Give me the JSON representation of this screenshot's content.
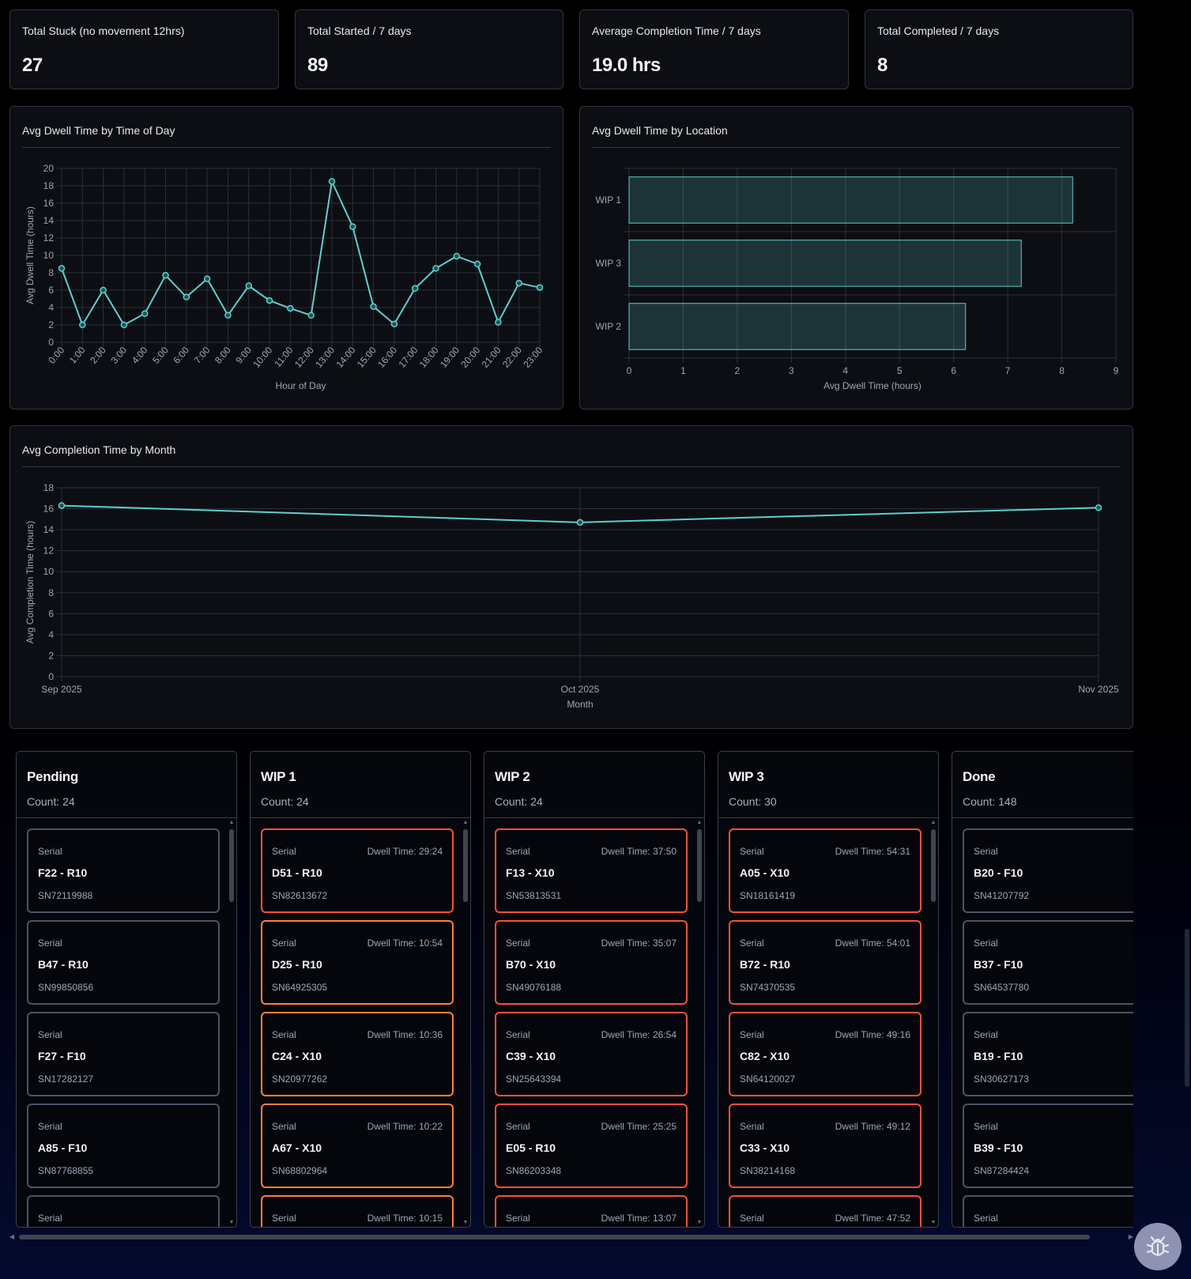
{
  "stats": [
    {
      "title": "Total Stuck (no movement 12hrs)",
      "value": "27"
    },
    {
      "title": "Total Started / 7 days",
      "value": "89"
    },
    {
      "title": "Average Completion Time / 7 days",
      "value": "19.0 hrs"
    },
    {
      "title": "Total Completed / 7 days",
      "value": "8"
    }
  ],
  "charts": {
    "dwell_by_hour_title": "Avg Dwell Time by Time of Day",
    "dwell_by_location_title": "Avg Dwell Time by Location",
    "completion_by_month_title": "Avg Completion Time by Month"
  },
  "chart_data": [
    {
      "type": "line",
      "title": "Avg Dwell Time by Time of Day",
      "xlabel": "Hour of Day",
      "ylabel": "Avg Dwell Time (hours)",
      "x": [
        "0:00",
        "1:00",
        "2:00",
        "3:00",
        "4:00",
        "5:00",
        "6:00",
        "7:00",
        "8:00",
        "9:00",
        "10:00",
        "11:00",
        "12:00",
        "13:00",
        "14:00",
        "15:00",
        "16:00",
        "17:00",
        "18:00",
        "19:00",
        "20:00",
        "21:00",
        "22:00",
        "23:00"
      ],
      "values": [
        8.5,
        2.0,
        6.0,
        2.0,
        3.3,
        7.7,
        5.2,
        7.3,
        3.1,
        6.5,
        4.8,
        3.9,
        3.1,
        18.5,
        13.3,
        4.1,
        2.1,
        6.2,
        8.5,
        9.9,
        9.0,
        2.3,
        6.8,
        6.3
      ],
      "ylim": [
        0,
        20
      ],
      "yticks": [
        0,
        2,
        4,
        6,
        8,
        10,
        12,
        14,
        16,
        18,
        20
      ],
      "grid": true,
      "color": "#5ecfcf"
    },
    {
      "type": "bar",
      "orientation": "horizontal",
      "title": "Avg Dwell Time by Location",
      "xlabel": "Avg Dwell Time (hours)",
      "categories": [
        "WIP 1",
        "WIP 3",
        "WIP 2"
      ],
      "values": [
        8.2,
        7.25,
        6.22
      ],
      "xlim": [
        0,
        9
      ],
      "xticks": [
        0,
        1,
        2,
        3,
        4,
        5,
        6,
        7,
        8,
        9
      ],
      "grid": true,
      "color": "#5ecfcf"
    },
    {
      "type": "line",
      "title": "Avg Completion Time by Month",
      "xlabel": "Month",
      "ylabel": "Avg Completion Time (hours)",
      "x": [
        "Sep 2025",
        "Oct 2025",
        "Nov 2025"
      ],
      "values": [
        16.3,
        14.7,
        16.1
      ],
      "ylim": [
        0,
        18
      ],
      "yticks": [
        0,
        2,
        4,
        6,
        8,
        10,
        12,
        14,
        16,
        18
      ],
      "grid": true,
      "color": "#5ecfcf"
    }
  ],
  "kanban": [
    {
      "title": "Pending",
      "count": "Count: 24",
      "cards": [
        {
          "label": "Serial",
          "dwell": "",
          "name": "F22 - R10",
          "serial": "SN72119988",
          "status": "normal"
        },
        {
          "label": "Serial",
          "dwell": "",
          "name": "B47 - R10",
          "serial": "SN99850856",
          "status": "normal"
        },
        {
          "label": "Serial",
          "dwell": "",
          "name": "F27 - F10",
          "serial": "SN17282127",
          "status": "normal"
        },
        {
          "label": "Serial",
          "dwell": "",
          "name": "A85 - F10",
          "serial": "SN87768855",
          "status": "normal"
        },
        {
          "label": "Serial",
          "dwell": "",
          "name": "",
          "serial": "",
          "status": "normal"
        }
      ]
    },
    {
      "title": "WIP 1",
      "count": "Count: 24",
      "cards": [
        {
          "label": "Serial",
          "dwell": "Dwell Time: 29:24",
          "name": "D51 - R10",
          "serial": "SN82613672",
          "status": "crit"
        },
        {
          "label": "Serial",
          "dwell": "Dwell Time: 10:54",
          "name": "D25 - R10",
          "serial": "SN64925305",
          "status": "warn"
        },
        {
          "label": "Serial",
          "dwell": "Dwell Time: 10:36",
          "name": "C24 - X10",
          "serial": "SN20977262",
          "status": "warn"
        },
        {
          "label": "Serial",
          "dwell": "Dwell Time: 10:22",
          "name": "A67 - X10",
          "serial": "SN68802964",
          "status": "warn"
        },
        {
          "label": "Serial",
          "dwell": "Dwell Time: 10:15",
          "name": "",
          "serial": "",
          "status": "warn"
        }
      ]
    },
    {
      "title": "WIP 2",
      "count": "Count: 24",
      "cards": [
        {
          "label": "Serial",
          "dwell": "Dwell Time: 37:50",
          "name": "F13 - X10",
          "serial": "SN53813531",
          "status": "crit"
        },
        {
          "label": "Serial",
          "dwell": "Dwell Time: 35:07",
          "name": "B70 - X10",
          "serial": "SN49076188",
          "status": "crit"
        },
        {
          "label": "Serial",
          "dwell": "Dwell Time: 26:54",
          "name": "C39 - X10",
          "serial": "SN25643394",
          "status": "crit"
        },
        {
          "label": "Serial",
          "dwell": "Dwell Time: 25:25",
          "name": "E05 - R10",
          "serial": "SN86203348",
          "status": "crit"
        },
        {
          "label": "Serial",
          "dwell": "Dwell Time: 13:07",
          "name": "",
          "serial": "",
          "status": "crit"
        }
      ]
    },
    {
      "title": "WIP 3",
      "count": "Count: 30",
      "cards": [
        {
          "label": "Serial",
          "dwell": "Dwell Time: 54:31",
          "name": "A05 - X10",
          "serial": "SN18161419",
          "status": "crit"
        },
        {
          "label": "Serial",
          "dwell": "Dwell Time: 54:01",
          "name": "B72 - R10",
          "serial": "SN74370535",
          "status": "crit"
        },
        {
          "label": "Serial",
          "dwell": "Dwell Time: 49:16",
          "name": "C82 - X10",
          "serial": "SN64120027",
          "status": "crit"
        },
        {
          "label": "Serial",
          "dwell": "Dwell Time: 49:12",
          "name": "C33 - X10",
          "serial": "SN38214168",
          "status": "crit"
        },
        {
          "label": "Serial",
          "dwell": "Dwell Time: 47:52",
          "name": "",
          "serial": "",
          "status": "crit"
        }
      ]
    },
    {
      "title": "Done",
      "count": "Count: 148",
      "cards": [
        {
          "label": "Serial",
          "dwell": "",
          "name": "B20 - F10",
          "serial": "SN41207792",
          "status": "normal"
        },
        {
          "label": "Serial",
          "dwell": "",
          "name": "B37 - F10",
          "serial": "SN64537780",
          "status": "normal"
        },
        {
          "label": "Serial",
          "dwell": "",
          "name": "B19 - F10",
          "serial": "SN30627173",
          "status": "normal"
        },
        {
          "label": "Serial",
          "dwell": "",
          "name": "B39 - F10",
          "serial": "SN87284424",
          "status": "normal"
        },
        {
          "label": "Serial",
          "dwell": "",
          "name": "",
          "serial": "",
          "status": "normal"
        }
      ]
    }
  ],
  "debug_button": {
    "icon": "bug-icon"
  },
  "colors": {
    "accent": "#5ecfcf",
    "warn": "#ff7f3e",
    "critical": "#f4513c",
    "card_border": "#4a5566"
  }
}
